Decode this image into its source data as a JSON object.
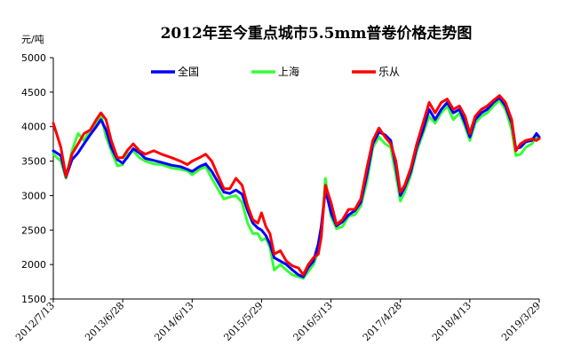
{
  "chart_data": {
    "type": "line",
    "title": "2012年至今重点城市5.5mm普卷价格走势图",
    "ylabel": "元/吨",
    "ylim": [
      1500,
      5000
    ],
    "yticks": [
      1500,
      2000,
      2500,
      3000,
      3500,
      4000,
      4500,
      5000
    ],
    "xticks": [
      "2012/7/13",
      "2013/6/28",
      "2014/6/13",
      "2015/5/29",
      "2016/5/13",
      "2017/4/28",
      "2018/4/13",
      "2019/3/29"
    ],
    "xlim": [
      "2012/7/13",
      "2019/3/29"
    ],
    "grid": false,
    "legend_position": "top-center",
    "series": [
      {
        "name": "全国",
        "color": "#0000ff",
        "points": [
          [
            "2012/7/13",
            3650
          ],
          [
            "2012/8/20",
            3580
          ],
          [
            "2012/9/15",
            3270
          ],
          [
            "2012/10/15",
            3520
          ],
          [
            "2012/11/15",
            3620
          ],
          [
            "2012/12/15",
            3750
          ],
          [
            "2013/1/15",
            3880
          ],
          [
            "2013/2/15",
            4000
          ],
          [
            "2013/3/10",
            4100
          ],
          [
            "2013/4/5",
            3950
          ],
          [
            "2013/5/1",
            3700
          ],
          [
            "2013/6/1",
            3520
          ],
          [
            "2013/6/28",
            3470
          ],
          [
            "2013/7/20",
            3550
          ],
          [
            "2013/8/20",
            3680
          ],
          [
            "2013/9/20",
            3620
          ],
          [
            "2013/10/20",
            3540
          ],
          [
            "2013/12/1",
            3510
          ],
          [
            "2014/1/10",
            3480
          ],
          [
            "2014/3/1",
            3440
          ],
          [
            "2014/4/15",
            3420
          ],
          [
            "2014/5/20",
            3380
          ],
          [
            "2014/6/13",
            3350
          ],
          [
            "2014/7/20",
            3420
          ],
          [
            "2014/8/20",
            3460
          ],
          [
            "2014/9/20",
            3350
          ],
          [
            "2014/10/20",
            3200
          ],
          [
            "2014/11/20",
            3050
          ],
          [
            "2014/12/20",
            3030
          ],
          [
            "2015/1/20",
            3080
          ],
          [
            "2015/2/20",
            3020
          ],
          [
            "2015/3/20",
            2780
          ],
          [
            "2015/4/15",
            2600
          ],
          [
            "2015/5/10",
            2530
          ],
          [
            "2015/5/29",
            2500
          ],
          [
            "2015/6/20",
            2420
          ],
          [
            "2015/7/10",
            2300
          ],
          [
            "2015/8/1",
            2100
          ],
          [
            "2015/9/1",
            2050
          ],
          [
            "2015/10/1",
            2000
          ],
          [
            "2015/11/1",
            1920
          ],
          [
            "2015/12/1",
            1850
          ],
          [
            "2015/12/25",
            1820
          ],
          [
            "2016/1/20",
            1960
          ],
          [
            "2016/2/15",
            2050
          ],
          [
            "2016/3/10",
            2300
          ],
          [
            "2016/3/25",
            2550
          ],
          [
            "2016/4/15",
            3080
          ],
          [
            "2016/5/13",
            2750
          ],
          [
            "2016/6/10",
            2560
          ],
          [
            "2016/7/10",
            2620
          ],
          [
            "2016/8/10",
            2720
          ],
          [
            "2016/9/10",
            2780
          ],
          [
            "2016/10/10",
            2900
          ],
          [
            "2016/11/10",
            3300
          ],
          [
            "2016/12/10",
            3750
          ],
          [
            "2017/1/10",
            3920
          ],
          [
            "2017/2/10",
            3880
          ],
          [
            "2017/3/10",
            3800
          ],
          [
            "2017/4/5",
            3420
          ],
          [
            "2017/4/28",
            3000
          ],
          [
            "2017/5/20",
            3120
          ],
          [
            "2017/6/20",
            3350
          ],
          [
            "2017/7/20",
            3700
          ],
          [
            "2017/8/20",
            3950
          ],
          [
            "2017/9/20",
            4250
          ],
          [
            "2017/10/20",
            4100
          ],
          [
            "2017/11/20",
            4250
          ],
          [
            "2017/12/20",
            4350
          ],
          [
            "2018/1/20",
            4200
          ],
          [
            "2018/2/20",
            4250
          ],
          [
            "2018/3/20",
            4050
          ],
          [
            "2018/4/13",
            3850
          ],
          [
            "2018/5/10",
            4100
          ],
          [
            "2018/6/10",
            4200
          ],
          [
            "2018/7/10",
            4250
          ],
          [
            "2018/8/10",
            4350
          ],
          [
            "2018/9/10",
            4420
          ],
          [
            "2018/10/10",
            4300
          ],
          [
            "2018/11/10",
            4050
          ],
          [
            "2018/12/1",
            3680
          ],
          [
            "2018/12/25",
            3700
          ],
          [
            "2019/1/20",
            3780
          ],
          [
            "2019/2/20",
            3800
          ],
          [
            "2019/3/15",
            3900
          ],
          [
            "2019/3/29",
            3850
          ]
        ]
      },
      {
        "name": "上海",
        "color": "#33ff33",
        "points": [
          [
            "2012/7/13",
            3600
          ],
          [
            "2012/8/20",
            3500
          ],
          [
            "2012/9/15",
            3250
          ],
          [
            "2012/10/15",
            3650
          ],
          [
            "2012/11/15",
            3900
          ],
          [
            "2012/12/15",
            3800
          ],
          [
            "2013/1/15",
            3950
          ],
          [
            "2013/2/15",
            4050
          ],
          [
            "2013/3/10",
            4180
          ],
          [
            "2013/4/5",
            3850
          ],
          [
            "2013/5/1",
            3650
          ],
          [
            "2013/6/1",
            3430
          ],
          [
            "2013/6/28",
            3450
          ],
          [
            "2013/7/20",
            3600
          ],
          [
            "2013/8/20",
            3650
          ],
          [
            "2013/9/20",
            3550
          ],
          [
            "2013/10/20",
            3500
          ],
          [
            "2013/12/1",
            3460
          ],
          [
            "2014/1/10",
            3450
          ],
          [
            "2014/3/1",
            3400
          ],
          [
            "2014/4/15",
            3380
          ],
          [
            "2014/5/20",
            3360
          ],
          [
            "2014/6/13",
            3300
          ],
          [
            "2014/7/20",
            3380
          ],
          [
            "2014/8/20",
            3420
          ],
          [
            "2014/9/20",
            3250
          ],
          [
            "2014/10/20",
            3100
          ],
          [
            "2014/11/20",
            2950
          ],
          [
            "2014/12/20",
            2980
          ],
          [
            "2015/1/20",
            3000
          ],
          [
            "2015/2/20",
            2900
          ],
          [
            "2015/3/20",
            2600
          ],
          [
            "2015/4/15",
            2450
          ],
          [
            "2015/5/10",
            2450
          ],
          [
            "2015/5/29",
            2350
          ],
          [
            "2015/6/20",
            2380
          ],
          [
            "2015/7/10",
            2250
          ],
          [
            "2015/8/1",
            1920
          ],
          [
            "2015/9/1",
            2000
          ],
          [
            "2015/10/1",
            1920
          ],
          [
            "2015/11/1",
            1850
          ],
          [
            "2015/12/1",
            1820
          ],
          [
            "2015/12/25",
            1800
          ],
          [
            "2016/1/20",
            1900
          ],
          [
            "2016/2/15",
            2000
          ],
          [
            "2016/3/10",
            2200
          ],
          [
            "2016/3/25",
            2400
          ],
          [
            "2016/4/15",
            3250
          ],
          [
            "2016/5/13",
            2700
          ],
          [
            "2016/6/10",
            2520
          ],
          [
            "2016/7/10",
            2550
          ],
          [
            "2016/8/10",
            2700
          ],
          [
            "2016/9/10",
            2720
          ],
          [
            "2016/10/10",
            2850
          ],
          [
            "2016/11/10",
            3200
          ],
          [
            "2016/12/10",
            3700
          ],
          [
            "2017/1/10",
            3850
          ],
          [
            "2017/2/10",
            3750
          ],
          [
            "2017/3/10",
            3700
          ],
          [
            "2017/4/5",
            3300
          ],
          [
            "2017/4/28",
            2920
          ],
          [
            "2017/5/20",
            3050
          ],
          [
            "2017/6/20",
            3300
          ],
          [
            "2017/7/20",
            3650
          ],
          [
            "2017/8/20",
            3900
          ],
          [
            "2017/9/20",
            4150
          ],
          [
            "2017/10/20",
            4050
          ],
          [
            "2017/11/20",
            4200
          ],
          [
            "2017/12/20",
            4300
          ],
          [
            "2018/1/20",
            4100
          ],
          [
            "2018/2/20",
            4200
          ],
          [
            "2018/3/20",
            4000
          ],
          [
            "2018/4/13",
            3800
          ],
          [
            "2018/5/10",
            4050
          ],
          [
            "2018/6/10",
            4150
          ],
          [
            "2018/7/10",
            4200
          ],
          [
            "2018/8/10",
            4300
          ],
          [
            "2018/9/10",
            4380
          ],
          [
            "2018/10/10",
            4250
          ],
          [
            "2018/11/10",
            3950
          ],
          [
            "2018/12/1",
            3580
          ],
          [
            "2018/12/25",
            3600
          ],
          [
            "2019/1/20",
            3700
          ],
          [
            "2019/2/20",
            3750
          ],
          [
            "2019/3/15",
            3850
          ],
          [
            "2019/3/29",
            3820
          ]
        ]
      },
      {
        "name": "乐从",
        "color": "#ff0000",
        "points": [
          [
            "2012/7/13",
            4050
          ],
          [
            "2012/8/20",
            3700
          ],
          [
            "2012/9/15",
            3280
          ],
          [
            "2012/10/15",
            3600
          ],
          [
            "2012/11/15",
            3750
          ],
          [
            "2012/12/15",
            3900
          ],
          [
            "2013/1/15",
            3950
          ],
          [
            "2013/2/15",
            4100
          ],
          [
            "2013/3/10",
            4200
          ],
          [
            "2013/4/5",
            4100
          ],
          [
            "2013/5/1",
            3800
          ],
          [
            "2013/6/1",
            3550
          ],
          [
            "2013/6/28",
            3550
          ],
          [
            "2013/7/20",
            3650
          ],
          [
            "2013/8/20",
            3750
          ],
          [
            "2013/9/20",
            3650
          ],
          [
            "2013/10/20",
            3600
          ],
          [
            "2013/12/1",
            3650
          ],
          [
            "2014/1/10",
            3600
          ],
          [
            "2014/3/1",
            3550
          ],
          [
            "2014/4/15",
            3500
          ],
          [
            "2014/5/20",
            3450
          ],
          [
            "2014/6/13",
            3500
          ],
          [
            "2014/7/20",
            3550
          ],
          [
            "2014/8/20",
            3600
          ],
          [
            "2014/9/20",
            3500
          ],
          [
            "2014/10/20",
            3300
          ],
          [
            "2014/11/20",
            3100
          ],
          [
            "2014/12/20",
            3100
          ],
          [
            "2015/1/20",
            3250
          ],
          [
            "2015/2/20",
            3150
          ],
          [
            "2015/3/20",
            2850
          ],
          [
            "2015/4/15",
            2650
          ],
          [
            "2015/5/10",
            2600
          ],
          [
            "2015/5/29",
            2750
          ],
          [
            "2015/6/20",
            2550
          ],
          [
            "2015/7/10",
            2450
          ],
          [
            "2015/8/1",
            2150
          ],
          [
            "2015/9/1",
            2200
          ],
          [
            "2015/10/1",
            2050
          ],
          [
            "2015/11/1",
            1980
          ],
          [
            "2015/12/1",
            1950
          ],
          [
            "2015/12/25",
            1850
          ],
          [
            "2016/1/20",
            2000
          ],
          [
            "2016/2/15",
            2100
          ],
          [
            "2016/3/10",
            2150
          ],
          [
            "2016/3/25",
            2400
          ],
          [
            "2016/4/15",
            3150
          ],
          [
            "2016/5/13",
            2900
          ],
          [
            "2016/6/10",
            2580
          ],
          [
            "2016/7/10",
            2650
          ],
          [
            "2016/8/10",
            2800
          ],
          [
            "2016/9/10",
            2800
          ],
          [
            "2016/10/10",
            2950
          ],
          [
            "2016/11/10",
            3400
          ],
          [
            "2016/12/10",
            3800
          ],
          [
            "2017/1/10",
            3980
          ],
          [
            "2017/2/10",
            3850
          ],
          [
            "2017/3/10",
            3750
          ],
          [
            "2017/4/5",
            3500
          ],
          [
            "2017/4/28",
            3050
          ],
          [
            "2017/5/20",
            3150
          ],
          [
            "2017/6/20",
            3400
          ],
          [
            "2017/7/20",
            3750
          ],
          [
            "2017/8/20",
            4050
          ],
          [
            "2017/9/20",
            4350
          ],
          [
            "2017/10/20",
            4200
          ],
          [
            "2017/11/20",
            4350
          ],
          [
            "2017/12/20",
            4400
          ],
          [
            "2018/1/20",
            4250
          ],
          [
            "2018/2/20",
            4300
          ],
          [
            "2018/3/20",
            4150
          ],
          [
            "2018/4/13",
            3900
          ],
          [
            "2018/5/10",
            4150
          ],
          [
            "2018/6/10",
            4250
          ],
          [
            "2018/7/10",
            4300
          ],
          [
            "2018/8/10",
            4380
          ],
          [
            "2018/9/10",
            4450
          ],
          [
            "2018/10/10",
            4350
          ],
          [
            "2018/11/10",
            4100
          ],
          [
            "2018/12/1",
            3650
          ],
          [
            "2018/12/25",
            3750
          ],
          [
            "2019/1/20",
            3800
          ],
          [
            "2019/2/20",
            3820
          ],
          [
            "2019/3/15",
            3800
          ],
          [
            "2019/3/29",
            3830
          ]
        ]
      }
    ]
  }
}
